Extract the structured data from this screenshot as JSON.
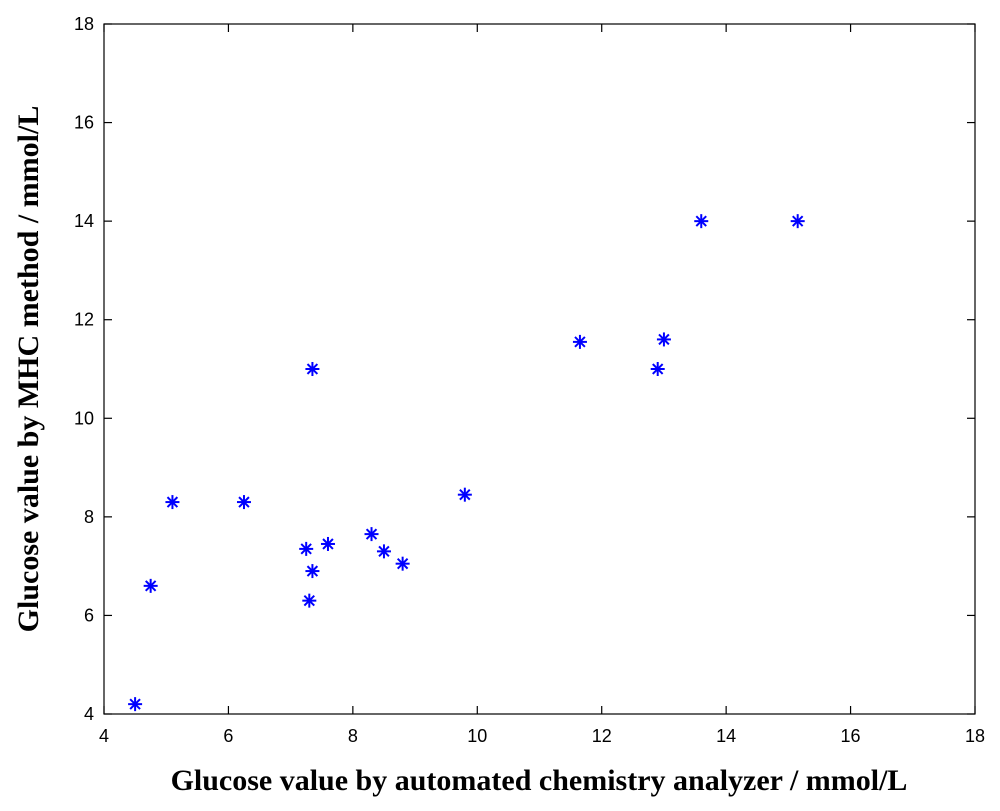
{
  "chart_data": {
    "type": "scatter",
    "title": "",
    "xlabel": "Glucose value by automated chemistry analyzer / mmol/L",
    "ylabel": "Glucose value by MHC method / mmol/L",
    "xlim": [
      4,
      18
    ],
    "ylim": [
      4,
      18
    ],
    "xticks": [
      "4",
      "6",
      "8",
      "10",
      "12",
      "14",
      "16",
      "18"
    ],
    "yticks": [
      "4",
      "6",
      "8",
      "10",
      "12",
      "14",
      "16",
      "18"
    ],
    "grid": false,
    "legend": "none",
    "series": [
      {
        "marker": "asterisk",
        "color": "#0000ff",
        "points": [
          {
            "x": 4.5,
            "y": 4.2
          },
          {
            "x": 4.75,
            "y": 6.6
          },
          {
            "x": 5.1,
            "y": 8.3
          },
          {
            "x": 6.25,
            "y": 8.3
          },
          {
            "x": 7.25,
            "y": 7.35
          },
          {
            "x": 7.3,
            "y": 6.3
          },
          {
            "x": 7.35,
            "y": 6.9
          },
          {
            "x": 7.35,
            "y": 11.0
          },
          {
            "x": 7.6,
            "y": 7.45
          },
          {
            "x": 8.3,
            "y": 7.65
          },
          {
            "x": 8.5,
            "y": 7.3
          },
          {
            "x": 8.8,
            "y": 7.05
          },
          {
            "x": 9.8,
            "y": 8.45
          },
          {
            "x": 11.65,
            "y": 11.55
          },
          {
            "x": 12.9,
            "y": 11.0
          },
          {
            "x": 13.0,
            "y": 11.6
          },
          {
            "x": 13.6,
            "y": 14.0
          },
          {
            "x": 15.15,
            "y": 14.0
          }
        ]
      }
    ]
  }
}
